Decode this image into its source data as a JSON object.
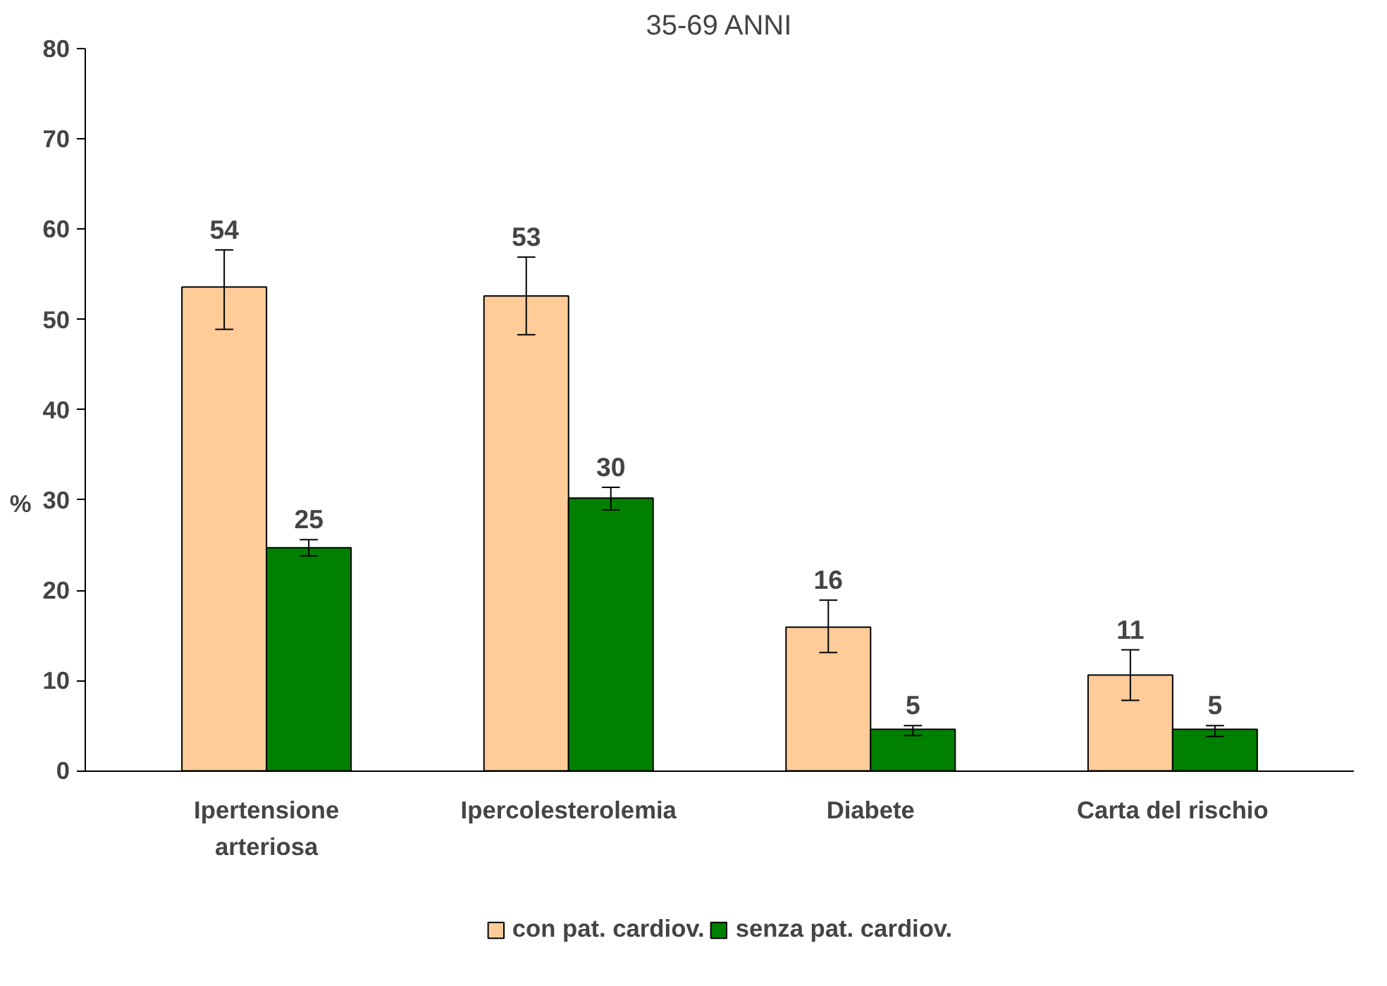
{
  "chart_data": {
    "type": "bar",
    "title": "35-69 ANNI",
    "ylabel": "%",
    "categories": [
      "Ipertensione arteriosa",
      "Ipercolesterolemia",
      "Diabete",
      "Carta del rischio"
    ],
    "series": [
      {
        "name": "con pat. cardiov.",
        "color": "#ffcc99",
        "values": [
          53.6,
          52.6,
          15.9,
          10.6
        ],
        "errors": [
          [
            48.9,
            57.7
          ],
          [
            48.3,
            56.9
          ],
          [
            13.1,
            18.9
          ],
          [
            7.8,
            13.4
          ]
        ],
        "value_labels": [
          "54",
          "53",
          "16",
          "11"
        ]
      },
      {
        "name": "senza pat. cardiov.",
        "color": "#008000",
        "values": [
          24.7,
          30.2,
          4.6,
          4.6
        ],
        "errors": [
          [
            23.8,
            25.6
          ],
          [
            28.9,
            31.4
          ],
          [
            3.9,
            5.0
          ],
          [
            3.8,
            5.0
          ]
        ],
        "value_labels": [
          "25",
          "30",
          "5",
          "5"
        ]
      }
    ],
    "ylim": [
      0,
      80
    ],
    "yticks": [
      0,
      10,
      20,
      30,
      40,
      50,
      60,
      70,
      80
    ],
    "grid": false,
    "legend": "bottom"
  }
}
